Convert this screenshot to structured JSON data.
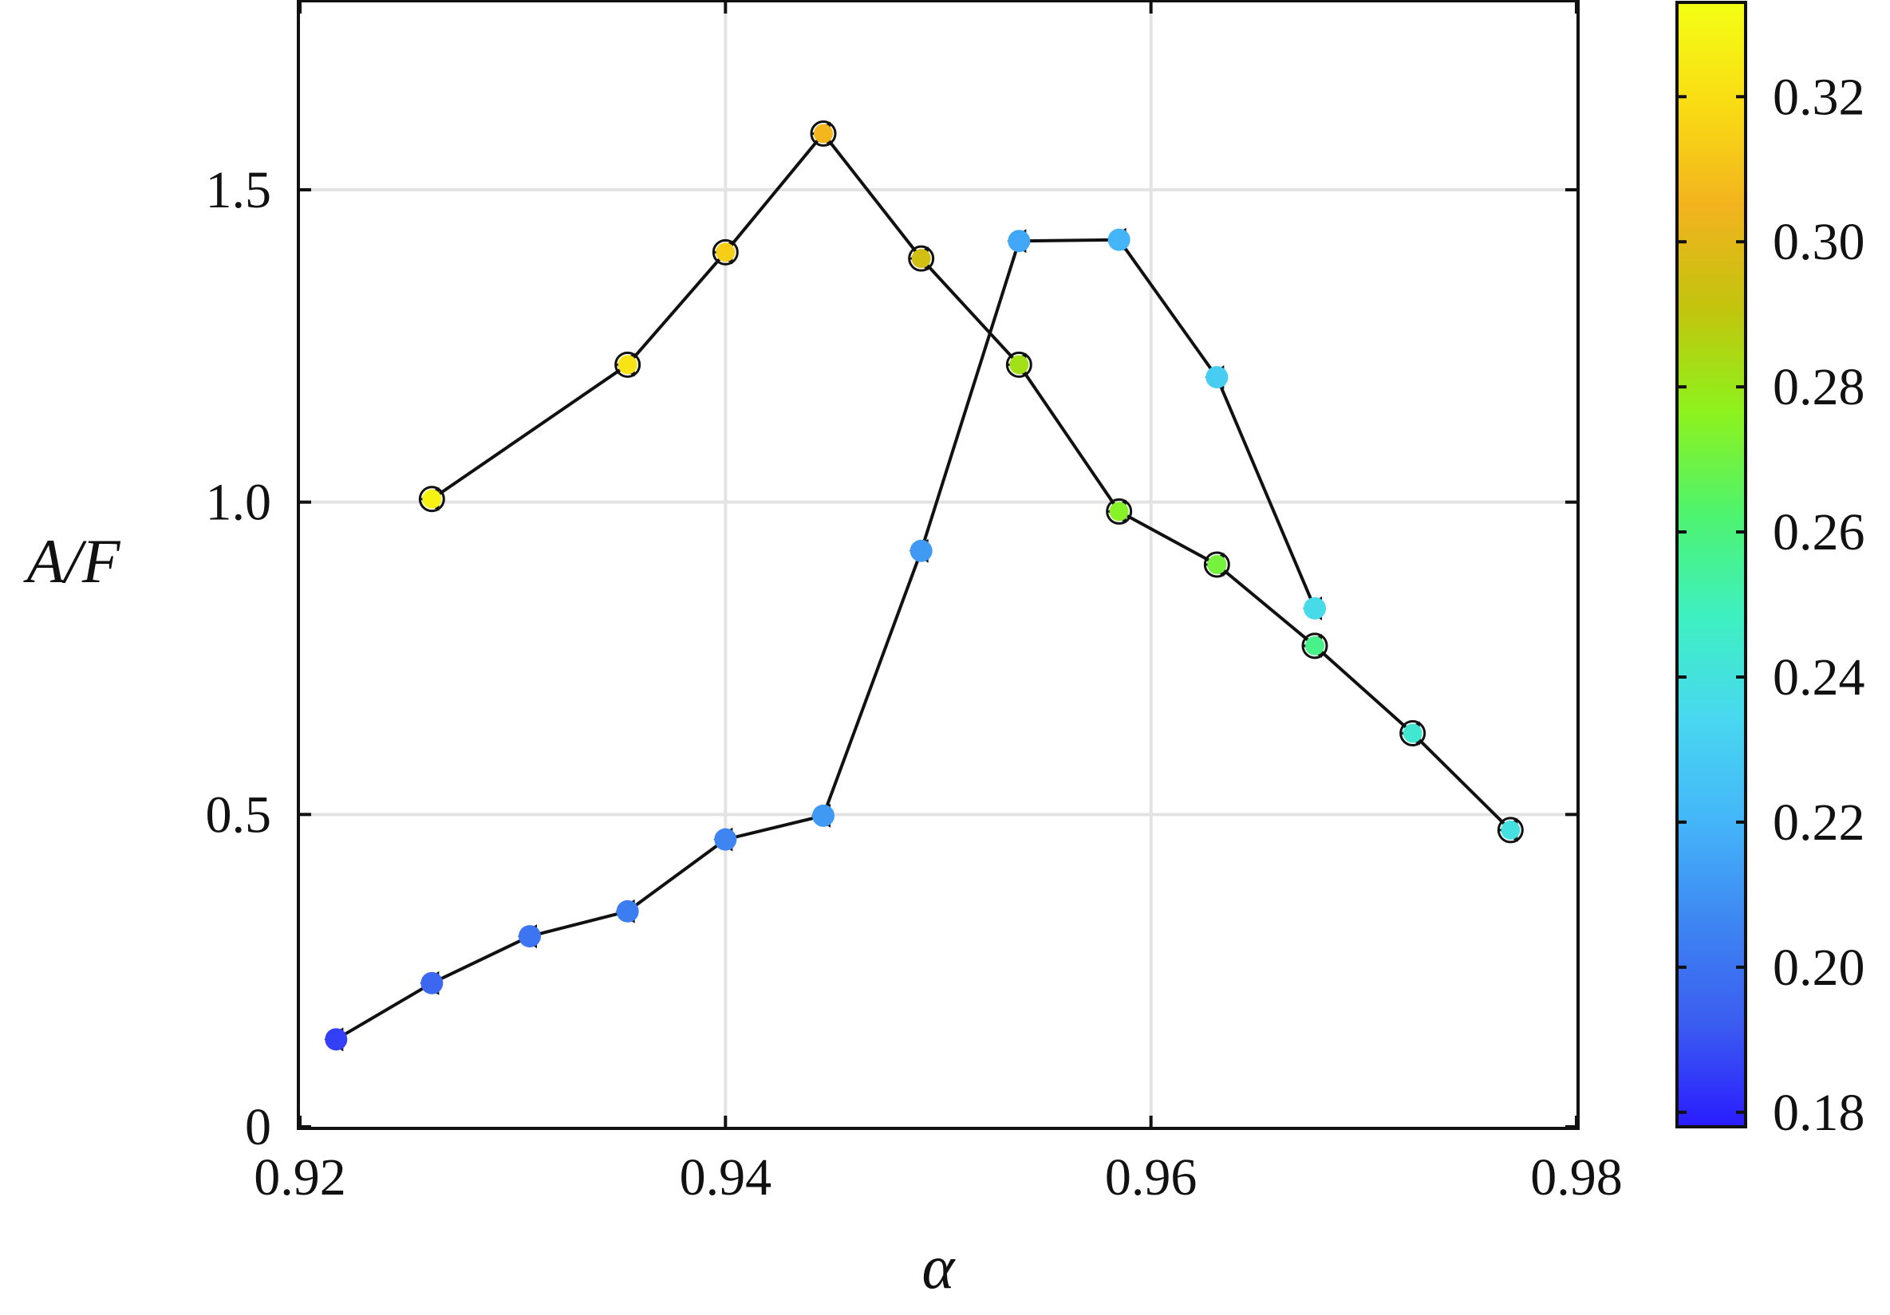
{
  "chart_data": {
    "type": "scatter",
    "xlabel": "α",
    "ylabel": "A/F",
    "xlim": [
      0.92,
      0.98
    ],
    "ylim": [
      0,
      1.8
    ],
    "x_ticks": [
      0.92,
      0.94,
      0.96,
      0.98
    ],
    "x_tick_labels": [
      "0.92",
      "0.94",
      "0.96",
      "0.98"
    ],
    "y_ticks": [
      0,
      0.5,
      1.0,
      1.5
    ],
    "y_tick_labels": [
      "0",
      "0.5",
      "1.0",
      "1.5"
    ],
    "grid": true,
    "colorbar": {
      "range": [
        0.178,
        0.333
      ],
      "ticks": [
        0.18,
        0.2,
        0.22,
        0.24,
        0.26,
        0.28,
        0.3,
        0.32
      ],
      "tick_labels": [
        "0.18",
        "0.20",
        "0.22",
        "0.24",
        "0.26",
        "0.28",
        "0.30",
        "0.32"
      ],
      "colormap": [
        "#2a1cff",
        "#3b5cf0",
        "#3e86f2",
        "#44b6f8",
        "#48d8f0",
        "#3ef0c0",
        "#4ef36e",
        "#8ef21c",
        "#c2c40e",
        "#f2b31e",
        "#f9dc14",
        "#f4ff14"
      ]
    },
    "series": [
      {
        "marker": "hollow-circle",
        "x": [
          0.9262,
          0.9354,
          0.94,
          0.9446,
          0.9492,
          0.9538,
          0.9585,
          0.9631,
          0.9677,
          0.9723,
          0.9769
        ],
        "y": [
          1.005,
          1.22,
          1.4,
          1.59,
          1.39,
          1.22,
          0.985,
          0.9,
          0.77,
          0.63,
          0.475
        ],
        "c": [
          0.328,
          0.322,
          0.314,
          0.306,
          0.295,
          0.282,
          0.275,
          0.271,
          0.258,
          0.244,
          0.239
        ]
      },
      {
        "marker": "filled-circle",
        "x": [
          0.9217,
          0.9262,
          0.9308,
          0.9354,
          0.94,
          0.9446,
          0.9492,
          0.9538,
          0.9585,
          0.9631,
          0.9677
        ],
        "y": [
          0.14,
          0.23,
          0.305,
          0.345,
          0.46,
          0.498,
          0.922,
          1.418,
          1.42,
          1.2,
          0.83
        ],
        "c": [
          0.186,
          0.196,
          0.2,
          0.203,
          0.206,
          0.212,
          0.212,
          0.216,
          0.22,
          0.23,
          0.236
        ]
      }
    ]
  }
}
